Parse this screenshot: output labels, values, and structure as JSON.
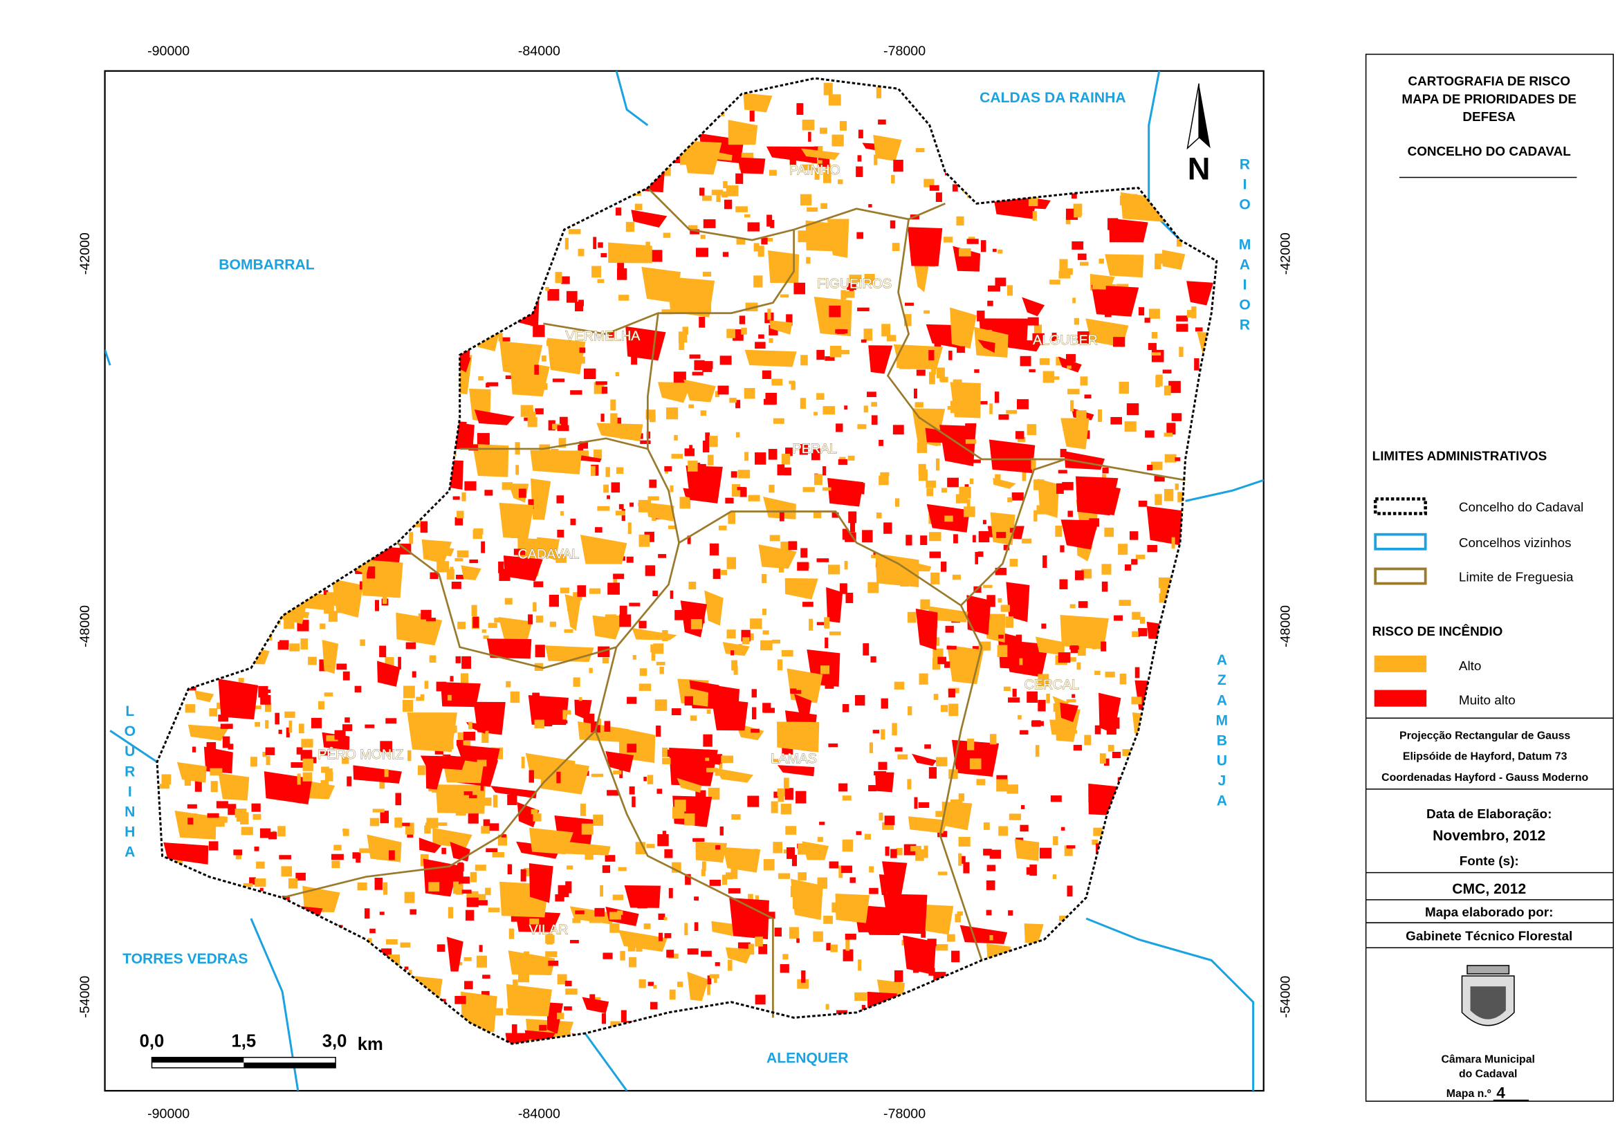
{
  "coordinates": {
    "x_labels": [
      "-90000",
      "-84000",
      "-78000"
    ],
    "y_labels": [
      "-42000",
      "-48000",
      "-54000"
    ]
  },
  "neighbours": {
    "caldas": "CALDAS DA RAINHA",
    "bombarral": "BOMBARRAL",
    "rio_maior": "RIO MAIOR",
    "azambuja": "AZAMBUJA",
    "lourinha": "LOURINHA",
    "torres_vedras": "TORRES VEDRAS",
    "alenquer": "ALENQUER"
  },
  "parishes": {
    "painho": "PAINHO",
    "figueiros": "FIGUEIROS",
    "vermelha": "VERMELHA",
    "alguber": "ALGUBER",
    "peral": "PERAL",
    "cadaval": "CADAVAL",
    "cercal": "CERCAL",
    "lamas": "LAMAS",
    "pero_moniz": "PÊRO MONIZ",
    "vilar": "VILAR"
  },
  "north": "N",
  "scale_bar": {
    "labels": [
      "0,0",
      "1,5",
      "3,0"
    ],
    "unit": "km"
  },
  "panel": {
    "title": [
      "CARTOGRAFIA DE RISCO",
      "MAPA DE PRIORIDADES DE",
      "DEFESA"
    ],
    "subtitle": "CONCELHO DO CADAVAL",
    "limits_heading": "LIMITES ADMINISTRATIVOS",
    "limits": [
      "Concelho do Cadaval",
      "Concelhos vizinhos",
      "Limite de Freguesia"
    ],
    "risk_heading": "RISCO DE INCÊNDIO",
    "risk": [
      {
        "label": "Alto",
        "color": "#ffb01f"
      },
      {
        "label": "Muito alto",
        "color": "#ff0000"
      }
    ],
    "projection": [
      "Projecção Rectangular de Gauss",
      "Elipsóide de Hayford, Datum 73",
      "Coordenadas Hayford - Gauss Moderno"
    ],
    "date_label": "Data de Elaboração:",
    "date": "Novembro, 2012",
    "source_label": "Fonte (s):",
    "source": "CMC, 2012",
    "author_label": "Mapa elaborado por:",
    "author": "Gabinete Técnico Florestal",
    "institution": [
      "Câmara Municipal",
      "do Cadaval"
    ],
    "map_label": "Mapa n.º",
    "map_number": "4"
  }
}
